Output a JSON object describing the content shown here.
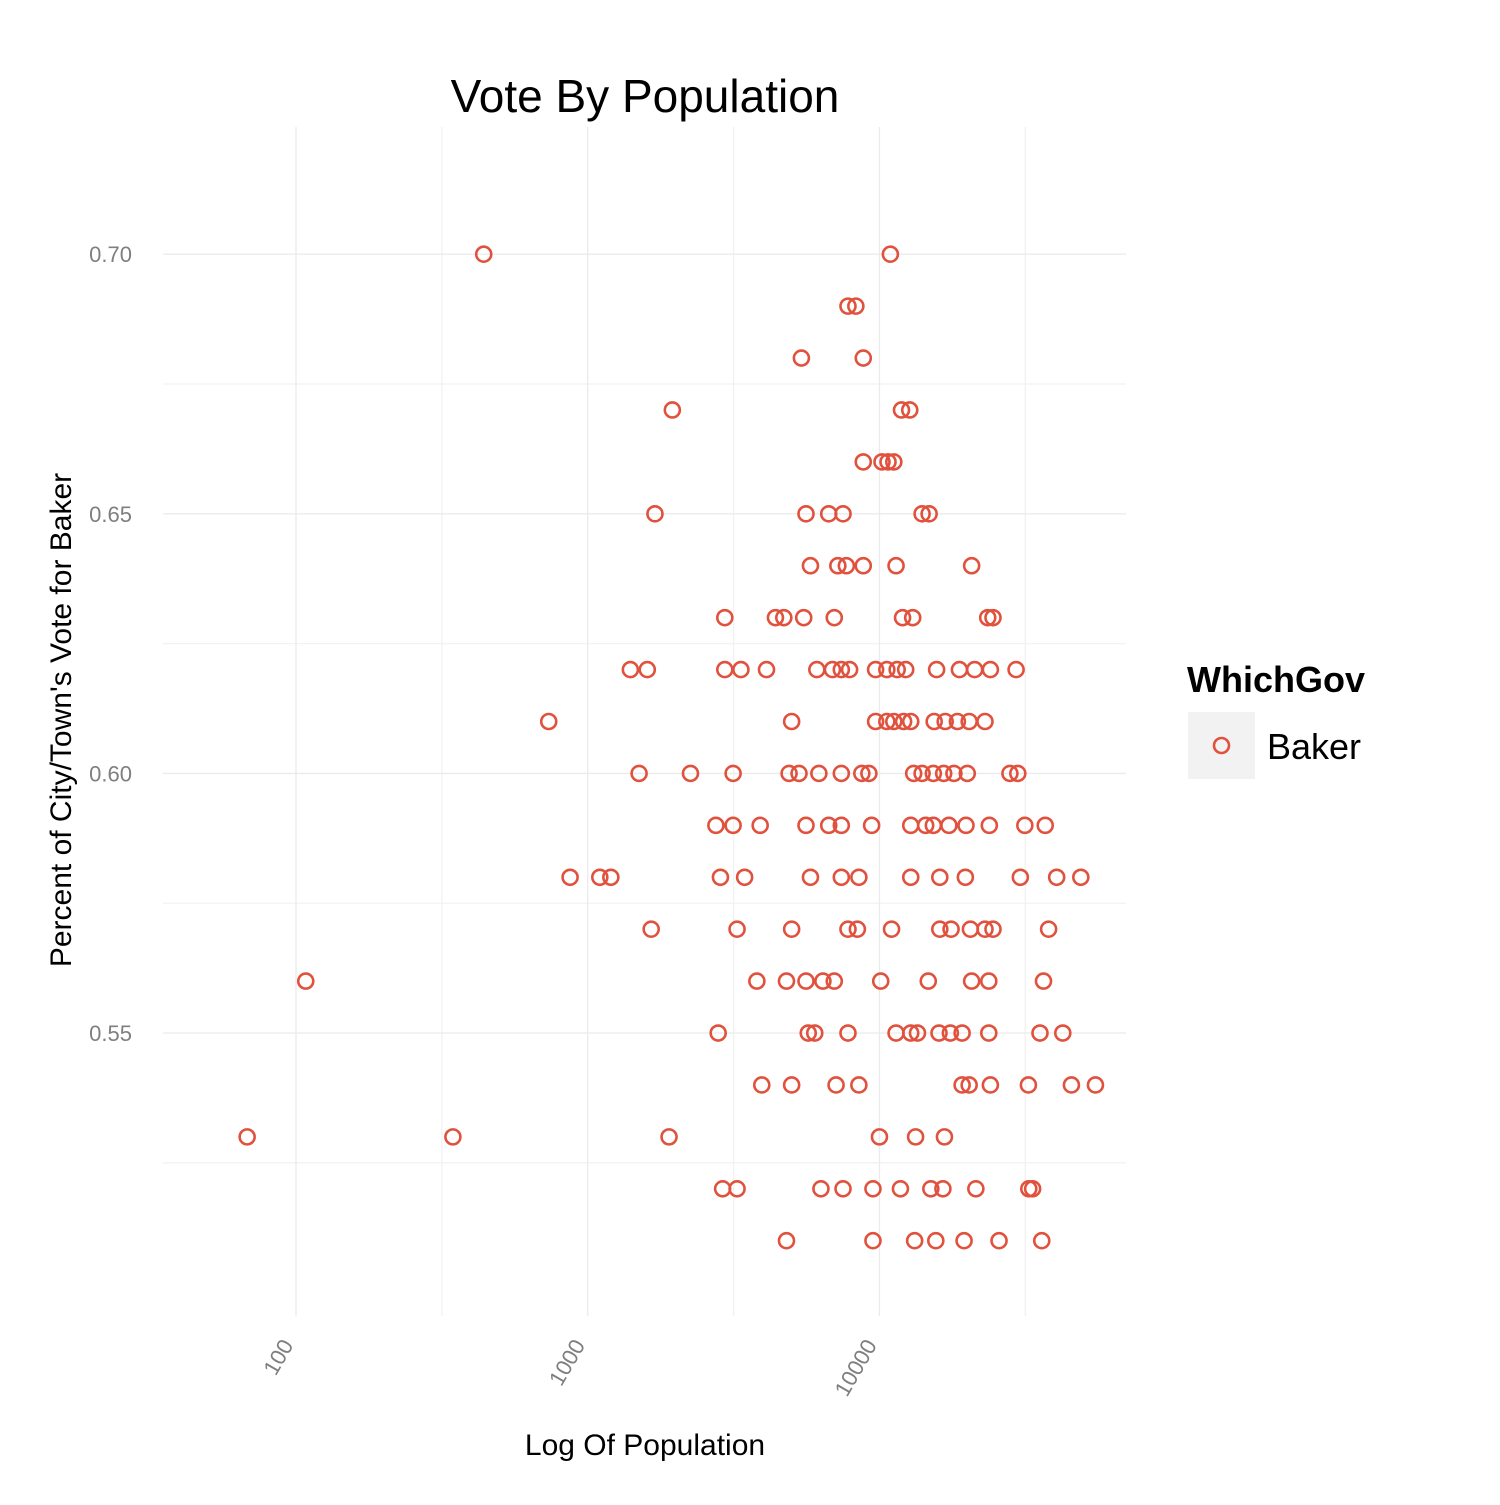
{
  "chart_data": {
    "type": "scatter",
    "title": "Vote By Population",
    "xlabel": "Log Of Population",
    "ylabel": "Percent of City/Town's Vote for Baker",
    "x_scale": "log10",
    "xlim": [
      35,
      70000
    ],
    "ylim": [
      0.4955,
      0.7245
    ],
    "x_ticks": [
      100,
      1000,
      10000
    ],
    "x_tick_labels": [
      "100",
      "1000",
      "10000"
    ],
    "y_ticks": [
      0.55,
      0.6,
      0.65,
      0.7
    ],
    "y_tick_labels": [
      "0.55",
      "0.60",
      "0.65",
      "0.70"
    ],
    "grid": true,
    "marker": "open-circle",
    "colors": {
      "Baker": "#e0523d"
    },
    "legend": {
      "title": "WhichGov",
      "position": "right",
      "entries": [
        "Baker"
      ]
    },
    "series": [
      {
        "name": "Baker",
        "points": [
          [
            440,
            0.7
          ],
          [
            10900,
            0.7
          ],
          [
            7800,
            0.69
          ],
          [
            8300,
            0.69
          ],
          [
            5400,
            0.68
          ],
          [
            8800,
            0.68
          ],
          [
            1950,
            0.67
          ],
          [
            11900,
            0.67
          ],
          [
            12700,
            0.67
          ],
          [
            8800,
            0.66
          ],
          [
            10200,
            0.66
          ],
          [
            10700,
            0.66
          ],
          [
            11200,
            0.66
          ],
          [
            1700,
            0.65
          ],
          [
            5600,
            0.65
          ],
          [
            6700,
            0.65
          ],
          [
            7500,
            0.65
          ],
          [
            14000,
            0.65
          ],
          [
            14800,
            0.65
          ],
          [
            5800,
            0.64
          ],
          [
            7200,
            0.64
          ],
          [
            7700,
            0.64
          ],
          [
            8800,
            0.64
          ],
          [
            11400,
            0.64
          ],
          [
            20700,
            0.64
          ],
          [
            2950,
            0.63
          ],
          [
            4400,
            0.63
          ],
          [
            4700,
            0.63
          ],
          [
            5500,
            0.63
          ],
          [
            7000,
            0.63
          ],
          [
            12000,
            0.63
          ],
          [
            13000,
            0.63
          ],
          [
            23500,
            0.63
          ],
          [
            24500,
            0.63
          ],
          [
            1400,
            0.62
          ],
          [
            1600,
            0.62
          ],
          [
            2950,
            0.62
          ],
          [
            3350,
            0.62
          ],
          [
            4100,
            0.62
          ],
          [
            6100,
            0.62
          ],
          [
            6900,
            0.62
          ],
          [
            7400,
            0.62
          ],
          [
            7900,
            0.62
          ],
          [
            9700,
            0.62
          ],
          [
            10600,
            0.62
          ],
          [
            11500,
            0.62
          ],
          [
            12300,
            0.62
          ],
          [
            15700,
            0.62
          ],
          [
            18800,
            0.62
          ],
          [
            21200,
            0.62
          ],
          [
            24000,
            0.62
          ],
          [
            29400,
            0.62
          ],
          [
            735,
            0.61
          ],
          [
            5000,
            0.61
          ],
          [
            9700,
            0.61
          ],
          [
            10600,
            0.61
          ],
          [
            11200,
            0.61
          ],
          [
            12100,
            0.61
          ],
          [
            12800,
            0.61
          ],
          [
            15400,
            0.61
          ],
          [
            16800,
            0.61
          ],
          [
            18500,
            0.61
          ],
          [
            20300,
            0.61
          ],
          [
            23000,
            0.61
          ],
          [
            1500,
            0.6
          ],
          [
            2250,
            0.6
          ],
          [
            3150,
            0.6
          ],
          [
            4900,
            0.6
          ],
          [
            5300,
            0.6
          ],
          [
            6200,
            0.6
          ],
          [
            7400,
            0.6
          ],
          [
            8700,
            0.6
          ],
          [
            9200,
            0.6
          ],
          [
            13100,
            0.6
          ],
          [
            14000,
            0.6
          ],
          [
            15300,
            0.6
          ],
          [
            16600,
            0.6
          ],
          [
            18000,
            0.6
          ],
          [
            20000,
            0.6
          ],
          [
            28000,
            0.6
          ],
          [
            29800,
            0.6
          ],
          [
            2750,
            0.59
          ],
          [
            3150,
            0.59
          ],
          [
            3900,
            0.59
          ],
          [
            5600,
            0.59
          ],
          [
            6700,
            0.59
          ],
          [
            7400,
            0.59
          ],
          [
            9400,
            0.59
          ],
          [
            12800,
            0.59
          ],
          [
            14400,
            0.59
          ],
          [
            15300,
            0.59
          ],
          [
            17300,
            0.59
          ],
          [
            19800,
            0.59
          ],
          [
            23800,
            0.59
          ],
          [
            31500,
            0.59
          ],
          [
            37000,
            0.59
          ],
          [
            870,
            0.58
          ],
          [
            1100,
            0.58
          ],
          [
            1200,
            0.58
          ],
          [
            2850,
            0.58
          ],
          [
            3450,
            0.58
          ],
          [
            5800,
            0.58
          ],
          [
            7400,
            0.58
          ],
          [
            8500,
            0.58
          ],
          [
            12800,
            0.58
          ],
          [
            16100,
            0.58
          ],
          [
            19700,
            0.58
          ],
          [
            30400,
            0.58
          ],
          [
            40500,
            0.58
          ],
          [
            49000,
            0.58
          ],
          [
            1650,
            0.57
          ],
          [
            3250,
            0.57
          ],
          [
            5000,
            0.57
          ],
          [
            7800,
            0.57
          ],
          [
            8400,
            0.57
          ],
          [
            11000,
            0.57
          ],
          [
            16100,
            0.57
          ],
          [
            17600,
            0.57
          ],
          [
            20500,
            0.57
          ],
          [
            23000,
            0.57
          ],
          [
            24500,
            0.57
          ],
          [
            38000,
            0.57
          ],
          [
            108,
            0.56
          ],
          [
            3800,
            0.56
          ],
          [
            4800,
            0.56
          ],
          [
            5600,
            0.56
          ],
          [
            6400,
            0.56
          ],
          [
            7000,
            0.56
          ],
          [
            10100,
            0.56
          ],
          [
            14700,
            0.56
          ],
          [
            20700,
            0.56
          ],
          [
            23700,
            0.56
          ],
          [
            36500,
            0.56
          ],
          [
            2800,
            0.55
          ],
          [
            5700,
            0.55
          ],
          [
            6000,
            0.55
          ],
          [
            7800,
            0.55
          ],
          [
            11400,
            0.55
          ],
          [
            12800,
            0.55
          ],
          [
            13500,
            0.55
          ],
          [
            16000,
            0.55
          ],
          [
            17500,
            0.55
          ],
          [
            19200,
            0.55
          ],
          [
            23700,
            0.55
          ],
          [
            35500,
            0.55
          ],
          [
            42500,
            0.55
          ],
          [
            3950,
            0.54
          ],
          [
            5000,
            0.54
          ],
          [
            7100,
            0.54
          ],
          [
            8500,
            0.54
          ],
          [
            19200,
            0.54
          ],
          [
            20300,
            0.54
          ],
          [
            24000,
            0.54
          ],
          [
            32400,
            0.54
          ],
          [
            45500,
            0.54
          ],
          [
            55000,
            0.54
          ],
          [
            68,
            0.53
          ],
          [
            345,
            0.53
          ],
          [
            1900,
            0.53
          ],
          [
            10000,
            0.53
          ],
          [
            13300,
            0.53
          ],
          [
            16700,
            0.53
          ],
          [
            2900,
            0.52
          ],
          [
            3250,
            0.52
          ],
          [
            6300,
            0.52
          ],
          [
            7500,
            0.52
          ],
          [
            9500,
            0.52
          ],
          [
            11800,
            0.52
          ],
          [
            15000,
            0.52
          ],
          [
            16500,
            0.52
          ],
          [
            21400,
            0.52
          ],
          [
            32500,
            0.52
          ],
          [
            33500,
            0.52
          ],
          [
            4800,
            0.51
          ],
          [
            9500,
            0.51
          ],
          [
            13200,
            0.51
          ],
          [
            15600,
            0.51
          ],
          [
            19500,
            0.51
          ],
          [
            25700,
            0.51
          ],
          [
            36000,
            0.51
          ]
        ]
      }
    ]
  }
}
